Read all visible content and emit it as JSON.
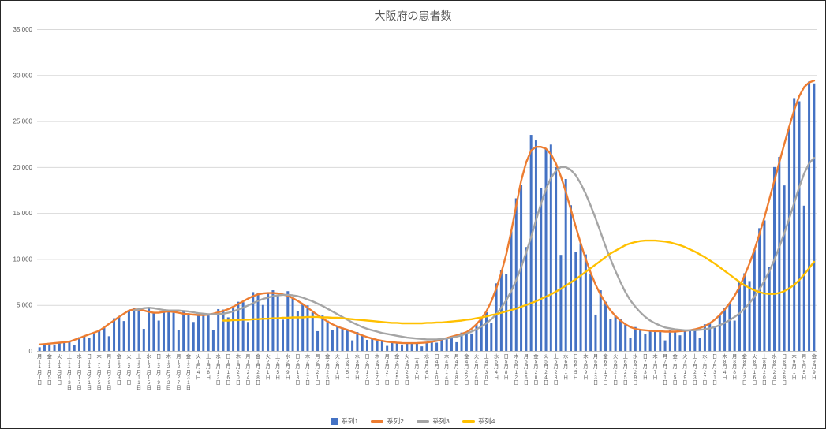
{
  "window": {
    "background": "#ffffff",
    "border_color": "#262626"
  },
  "chart_data": {
    "type": "bar",
    "subtype": "combo-bar-and-lines",
    "title": "大阪府の患者数",
    "grid": true,
    "legend_position": "bottom",
    "y_axis": {
      "min": 0,
      "max": 35000,
      "step": 5000,
      "tick_labels": [
        "0",
        "5 000",
        "10 000",
        "15 000",
        "20 000",
        "25 000",
        "30 000",
        "35 000"
      ]
    },
    "x_axis": {
      "sampling": "values sampled every 2 days; tick labels shown every 4 days",
      "ticks_every_points": 2,
      "tick_labels": [
        "月 11月1日",
        "金 11月5日",
        "火 11月9日",
        "土 11月13日",
        "水 11月17日",
        "日 11月21日",
        "木 11月25日",
        "月 11月29日",
        "金 12月3日",
        "火 12月7日",
        "土 12月11日",
        "水 12月15日",
        "日 12月19日",
        "木 12月23日",
        "月 12月27日",
        "金 12月31日",
        "火 1月4日",
        "土 1月8日",
        "水 1月12日",
        "日 1月16日",
        "木 1月20日",
        "月 1月24日",
        "金 1月28日",
        "火 2月1日",
        "土 2月5日",
        "水 2月9日",
        "日 2月13日",
        "木 2月17日",
        "月 2月21日",
        "金 2月25日",
        "火 3月1日",
        "土 3月5日",
        "水 3月9日",
        "日 3月13日",
        "木 3月17日",
        "月 3月21日",
        "金 3月25日",
        "火 3月29日",
        "土 4月2日",
        "水 4月6日",
        "日 4月10日",
        "木 4月14日",
        "月 4月18日",
        "金 4月22日",
        "火 4月26日",
        "土 4月30日",
        "水 5月4日",
        "日 5月8日",
        "木 5月12日",
        "月 5月16日",
        "金 5月20日",
        "火 5月24日",
        "土 5月28日",
        "水 6月1日",
        "日 6月5日",
        "木 6月9日",
        "月 6月13日",
        "金 6月17日",
        "火 6月21日",
        "土 6月25日",
        "水 6月29日",
        "日 7月3日",
        "木 7月7日",
        "月 7月11日",
        "金 7月15日",
        "火 7月19日",
        "土 7月23日",
        "水 7月27日",
        "日 7月31日",
        "木 8月4日",
        "月 8月8日",
        "金 8月12日",
        "火 8月16日",
        "土 8月20日",
        "水 8月24日",
        "日 8月28日",
        "木 9月1日",
        "月 9月5日",
        "金 9月9日"
      ]
    },
    "series": [
      {
        "name": "系列1",
        "type": "bar",
        "color": "#4472C4",
        "values": [
          400,
          800,
          800,
          700,
          900,
          1000,
          1000,
          650,
          1500,
          1650,
          1450,
          2000,
          2300,
          2500,
          1600,
          3550,
          3800,
          3250,
          4400,
          4700,
          4400,
          2400,
          4600,
          4250,
          3300,
          4250,
          4500,
          4150,
          2300,
          4350,
          4100,
          3150,
          3900,
          4100,
          3850,
          2250,
          4550,
          4500,
          3650,
          4800,
          5350,
          5300,
          3150,
          6400,
          6350,
          5000,
          6300,
          6600,
          6100,
          3400,
          6500,
          5900,
          4350,
          5100,
          4950,
          4200,
          2150,
          3850,
          3300,
          2300,
          2650,
          2550,
          2250,
          1150,
          2050,
          1750,
          1200,
          1350,
          1250,
          1100,
          550,
          1000,
          950,
          700,
          850,
          900,
          850,
          500,
          1000,
          1050,
          900,
          1250,
          1450,
          1500,
          950,
          2000,
          2100,
          1900,
          2900,
          3650,
          4200,
          3000,
          7350,
          8750,
          8400,
          13000,
          16600,
          18100,
          11300,
          23500,
          22900,
          17750,
          22000,
          22450,
          20000,
          10450,
          18700,
          15850,
          10800,
          11700,
          10500,
          8350,
          3950,
          6600,
          5350,
          3500,
          3800,
          3450,
          2850,
          1450,
          2600,
          2350,
          1800,
          2200,
          2250,
          2100,
          1150,
          2250,
          2150,
          1700,
          2200,
          2350,
          2300,
          1400,
          2900,
          3100,
          2700,
          3900,
          4700,
          5100,
          3300,
          7550,
          8450,
          7600,
          11000,
          13350,
          14200,
          9100,
          20000,
          21100,
          18000,
          24400,
          27500,
          27150,
          15800,
          29300,
          29100
        ]
      },
      {
        "name": "系列2",
        "type": "line",
        "color": "#ED7D31",
        "values": [
          700,
          750,
          800,
          850,
          900,
          950,
          1000,
          1200,
          1400,
          1600,
          1800,
          2000,
          2200,
          2550,
          2950,
          3300,
          3700,
          4050,
          4400,
          4500,
          4500,
          4400,
          4250,
          4150,
          4150,
          4250,
          4300,
          4250,
          4150,
          4050,
          4000,
          3950,
          3900,
          3900,
          3950,
          4050,
          4200,
          4350,
          4550,
          4800,
          5100,
          5400,
          5700,
          5950,
          6150,
          6250,
          6300,
          6300,
          6250,
          6150,
          6000,
          5750,
          5450,
          5100,
          4700,
          4300,
          3900,
          3550,
          3200,
          2900,
          2650,
          2450,
          2300,
          2100,
          1900,
          1700,
          1500,
          1350,
          1200,
          1100,
          1000,
          950,
          900,
          870,
          850,
          850,
          860,
          880,
          920,
          1000,
          1100,
          1250,
          1400,
          1550,
          1700,
          1850,
          2050,
          2400,
          2900,
          3500,
          4300,
          5400,
          6800,
          8500,
          10500,
          13000,
          15800,
          18500,
          20500,
          21800,
          22200,
          22200,
          22000,
          21400,
          20400,
          19000,
          17300,
          15400,
          13500,
          11700,
          10000,
          8500,
          7200,
          6100,
          5200,
          4400,
          3800,
          3300,
          2900,
          2600,
          2400,
          2300,
          2250,
          2200,
          2150,
          2150,
          2100,
          2100,
          2100,
          2150,
          2200,
          2250,
          2350,
          2500,
          2700,
          3000,
          3400,
          3900,
          4500,
          5200,
          6000,
          7000,
          8200,
          9500,
          11000,
          12700,
          14500,
          16500,
          18500,
          20500,
          22500,
          24400,
          26200,
          27700,
          28700,
          29200,
          29400
        ]
      },
      {
        "name": "系列3",
        "type": "line",
        "color": "#A5A5A5",
        "values": [
          null,
          null,
          null,
          null,
          null,
          null,
          null,
          null,
          null,
          null,
          null,
          null,
          null,
          null,
          null,
          null,
          null,
          null,
          null,
          4400,
          4550,
          4650,
          4700,
          4650,
          4550,
          4450,
          4400,
          4400,
          4400,
          4350,
          4300,
          4200,
          4100,
          4050,
          4000,
          4000,
          4000,
          4050,
          4150,
          4300,
          4500,
          4700,
          4950,
          5200,
          5450,
          5650,
          5800,
          5950,
          6050,
          6100,
          6100,
          6050,
          5950,
          5800,
          5600,
          5400,
          5150,
          4900,
          4600,
          4300,
          4000,
          3700,
          3400,
          3100,
          2850,
          2600,
          2400,
          2250,
          2100,
          1950,
          1850,
          1750,
          1650,
          1550,
          1450,
          1400,
          1350,
          1300,
          1250,
          1250,
          1250,
          1300,
          1350,
          1450,
          1550,
          1700,
          1900,
          2100,
          2350,
          2650,
          3000,
          3450,
          4000,
          4700,
          5500,
          6500,
          7700,
          9100,
          10700,
          12400,
          14200,
          16000,
          17600,
          18800,
          19600,
          20000,
          20000,
          19700,
          19100,
          18200,
          17100,
          15800,
          14400,
          12900,
          11400,
          10000,
          8700,
          7500,
          6400,
          5500,
          4800,
          4200,
          3700,
          3300,
          3000,
          2750,
          2550,
          2450,
          2350,
          2300,
          2250,
          2250,
          2250,
          2300,
          2350,
          2450,
          2600,
          2800,
          3050,
          3350,
          3700,
          4100,
          4600,
          5200,
          5900,
          6700,
          7600,
          8700,
          9900,
          11300,
          12800,
          14400,
          16100,
          17800,
          19300,
          20400,
          21000
        ]
      },
      {
        "name": "系列4",
        "type": "line",
        "color": "#FFC000",
        "values": [
          null,
          null,
          null,
          null,
          null,
          null,
          null,
          null,
          null,
          null,
          null,
          null,
          null,
          null,
          null,
          null,
          null,
          null,
          null,
          null,
          null,
          null,
          null,
          null,
          null,
          null,
          null,
          null,
          null,
          null,
          null,
          null,
          null,
          null,
          null,
          null,
          null,
          3300,
          3300,
          3350,
          3350,
          3400,
          3400,
          3450,
          3450,
          3500,
          3500,
          3550,
          3550,
          3600,
          3600,
          3650,
          3650,
          3650,
          3700,
          3700,
          3700,
          3650,
          3650,
          3600,
          3600,
          3550,
          3500,
          3450,
          3400,
          3350,
          3300,
          3250,
          3200,
          3150,
          3100,
          3050,
          3050,
          3000,
          3000,
          3000,
          3000,
          3000,
          3050,
          3050,
          3100,
          3100,
          3150,
          3200,
          3250,
          3300,
          3400,
          3450,
          3550,
          3650,
          3750,
          3900,
          4000,
          4150,
          4300,
          4450,
          4600,
          4800,
          5000,
          5200,
          5400,
          5650,
          5900,
          6150,
          6450,
          6750,
          7100,
          7450,
          7800,
          8200,
          8600,
          9000,
          9400,
          9800,
          10200,
          10600,
          10900,
          11200,
          11500,
          11700,
          11850,
          11950,
          12000,
          12000,
          12000,
          11950,
          11900,
          11800,
          11650,
          11500,
          11300,
          11050,
          10800,
          10500,
          10200,
          9850,
          9500,
          9100,
          8700,
          8300,
          7900,
          7500,
          7150,
          6850,
          6600,
          6400,
          6250,
          6200,
          6200,
          6300,
          6500,
          6800,
          7200,
          7700,
          8300,
          9000,
          9700
        ]
      }
    ],
    "legend": [
      {
        "label": "系列1",
        "color": "#4472C4",
        "marker": "bar"
      },
      {
        "label": "系列2",
        "color": "#ED7D31",
        "marker": "line"
      },
      {
        "label": "系列3",
        "color": "#A5A5A5",
        "marker": "line"
      },
      {
        "label": "系列4",
        "color": "#FFC000",
        "marker": "line"
      }
    ],
    "style": {
      "gridline_color": "#D9D9D9",
      "axis_text_color": "#595959",
      "title_color": "#595959"
    }
  }
}
